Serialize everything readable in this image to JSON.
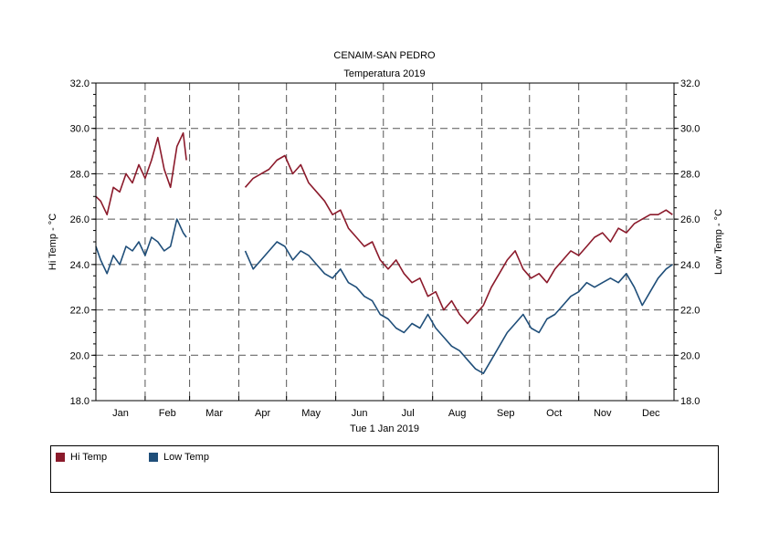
{
  "colors": {
    "hi": "#8b1a2b",
    "low": "#1f4e79",
    "grid": "#555555"
  },
  "chart_data": {
    "type": "line",
    "title": "CENAIM-SAN PEDRO",
    "subtitle": "Temperatura 2019",
    "xlabel": "Tue 1 Jan 2019",
    "ylabel_left": "Hi Temp - °C",
    "ylabel_right": "Low Temp - °C",
    "ylim": [
      18.0,
      32.0
    ],
    "yticks": [
      "18.0",
      "20.0",
      "22.0",
      "24.0",
      "26.0",
      "28.0",
      "30.0",
      "32.0"
    ],
    "months": [
      "Jan",
      "Feb",
      "Mar",
      "Apr",
      "May",
      "Jun",
      "Jul",
      "Aug",
      "Sep",
      "Oct",
      "Nov",
      "Dec"
    ],
    "grid": true,
    "legend_position": "bottom",
    "series": [
      {
        "name": "Hi Temp",
        "segments": [
          [
            [
              1,
              27.0
            ],
            [
              4,
              26.8
            ],
            [
              8,
              26.2
            ],
            [
              12,
              27.4
            ],
            [
              16,
              27.2
            ],
            [
              20,
              28.0
            ],
            [
              24,
              27.6
            ],
            [
              28,
              28.4
            ],
            [
              32,
              27.8
            ],
            [
              36,
              28.6
            ],
            [
              40,
              29.6
            ],
            [
              44,
              28.2
            ],
            [
              48,
              27.4
            ],
            [
              52,
              29.2
            ],
            [
              56,
              29.8
            ],
            [
              58,
              28.6
            ]
          ],
          [
            [
              95,
              27.4
            ],
            [
              100,
              27.8
            ],
            [
              105,
              28.0
            ],
            [
              110,
              28.2
            ],
            [
              115,
              28.6
            ],
            [
              120,
              28.8
            ],
            [
              125,
              28.0
            ],
            [
              130,
              28.4
            ],
            [
              135,
              27.6
            ],
            [
              140,
              27.2
            ],
            [
              145,
              26.8
            ],
            [
              150,
              26.2
            ],
            [
              155,
              26.4
            ],
            [
              160,
              25.6
            ],
            [
              165,
              25.2
            ],
            [
              170,
              24.8
            ],
            [
              175,
              25.0
            ],
            [
              180,
              24.2
            ],
            [
              185,
              23.8
            ],
            [
              190,
              24.2
            ],
            [
              195,
              23.6
            ],
            [
              200,
              23.2
            ],
            [
              205,
              23.4
            ],
            [
              210,
              22.6
            ],
            [
              215,
              22.8
            ],
            [
              220,
              22.0
            ],
            [
              225,
              22.4
            ],
            [
              230,
              21.8
            ],
            [
              235,
              21.4
            ],
            [
              240,
              21.8
            ],
            [
              245,
              22.2
            ],
            [
              250,
              23.0
            ],
            [
              255,
              23.6
            ],
            [
              260,
              24.2
            ],
            [
              265,
              24.6
            ],
            [
              270,
              23.8
            ],
            [
              275,
              23.4
            ],
            [
              280,
              23.6
            ],
            [
              285,
              23.2
            ],
            [
              290,
              23.8
            ],
            [
              295,
              24.2
            ],
            [
              300,
              24.6
            ],
            [
              305,
              24.4
            ],
            [
              310,
              24.8
            ],
            [
              315,
              25.2
            ],
            [
              320,
              25.4
            ],
            [
              325,
              25.0
            ],
            [
              330,
              25.6
            ],
            [
              335,
              25.4
            ],
            [
              340,
              25.8
            ],
            [
              345,
              26.0
            ],
            [
              350,
              26.2
            ],
            [
              355,
              26.2
            ],
            [
              360,
              26.4
            ],
            [
              364,
              26.2
            ]
          ]
        ]
      },
      {
        "name": "Low Temp",
        "segments": [
          [
            [
              1,
              24.8
            ],
            [
              4,
              24.2
            ],
            [
              8,
              23.6
            ],
            [
              12,
              24.4
            ],
            [
              16,
              24.0
            ],
            [
              20,
              24.8
            ],
            [
              24,
              24.6
            ],
            [
              28,
              25.0
            ],
            [
              32,
              24.4
            ],
            [
              36,
              25.2
            ],
            [
              40,
              25.0
            ],
            [
              44,
              24.6
            ],
            [
              48,
              24.8
            ],
            [
              52,
              26.0
            ],
            [
              56,
              25.4
            ],
            [
              58,
              25.2
            ]
          ],
          [
            [
              95,
              24.6
            ],
            [
              100,
              23.8
            ],
            [
              105,
              24.2
            ],
            [
              110,
              24.6
            ],
            [
              115,
              25.0
            ],
            [
              120,
              24.8
            ],
            [
              125,
              24.2
            ],
            [
              130,
              24.6
            ],
            [
              135,
              24.4
            ],
            [
              140,
              24.0
            ],
            [
              145,
              23.6
            ],
            [
              150,
              23.4
            ],
            [
              155,
              23.8
            ],
            [
              160,
              23.2
            ],
            [
              165,
              23.0
            ],
            [
              170,
              22.6
            ],
            [
              175,
              22.4
            ],
            [
              180,
              21.8
            ],
            [
              185,
              21.6
            ],
            [
              190,
              21.2
            ],
            [
              195,
              21.0
            ],
            [
              200,
              21.4
            ],
            [
              205,
              21.2
            ],
            [
              210,
              21.8
            ],
            [
              215,
              21.2
            ],
            [
              220,
              20.8
            ],
            [
              225,
              20.4
            ],
            [
              230,
              20.2
            ],
            [
              235,
              19.8
            ],
            [
              240,
              19.4
            ],
            [
              245,
              19.2
            ],
            [
              250,
              19.8
            ],
            [
              255,
              20.4
            ],
            [
              260,
              21.0
            ],
            [
              265,
              21.4
            ],
            [
              270,
              21.8
            ],
            [
              275,
              21.2
            ],
            [
              280,
              21.0
            ],
            [
              285,
              21.6
            ],
            [
              290,
              21.8
            ],
            [
              295,
              22.2
            ],
            [
              300,
              22.6
            ],
            [
              305,
              22.8
            ],
            [
              310,
              23.2
            ],
            [
              315,
              23.0
            ],
            [
              320,
              23.2
            ],
            [
              325,
              23.4
            ],
            [
              330,
              23.2
            ],
            [
              335,
              23.6
            ],
            [
              340,
              23.0
            ],
            [
              345,
              22.2
            ],
            [
              350,
              22.8
            ],
            [
              355,
              23.4
            ],
            [
              360,
              23.8
            ],
            [
              364,
              24.0
            ]
          ]
        ]
      }
    ]
  }
}
